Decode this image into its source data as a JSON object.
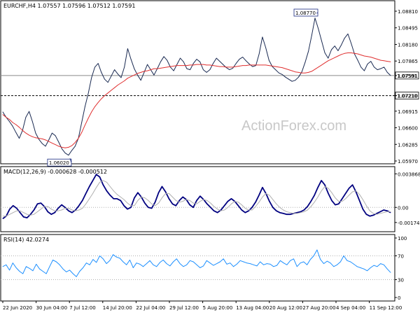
{
  "chart_data": [
    {
      "panel": "price",
      "type": "line",
      "title": "EURCHF,H4  1.07557 1.07596 1.07512 1.07591",
      "ylim": [
        1.0597,
        1.0881
      ],
      "y_ticks": [
        "1.08810",
        "1.08495",
        "1.08180",
        "1.07865",
        "1.07591",
        "1.07210",
        "1.06915",
        "1.06600",
        "1.06285",
        "1.05970"
      ],
      "series": [
        {
          "name": "",
          "color": "#1a2a52",
          "values": [
            1.069,
            1.068,
            1.0672,
            1.0663,
            1.0651,
            1.064,
            1.0655,
            1.068,
            1.0691,
            1.0672,
            1.065,
            1.0638,
            1.063,
            1.0625,
            1.0637,
            1.065,
            1.0645,
            1.0633,
            1.062,
            1.0612,
            1.0608,
            1.0617,
            1.0625,
            1.064,
            1.067,
            1.07,
            1.0725,
            1.0755,
            1.0775,
            1.0782,
            1.0765,
            1.0752,
            1.0746,
            1.0758,
            1.077,
            1.0762,
            1.0755,
            1.0775,
            1.081,
            1.079,
            1.0772,
            1.076,
            1.075,
            1.0765,
            1.078,
            1.077,
            1.076,
            1.0772,
            1.0785,
            1.0795,
            1.0788,
            1.0775,
            1.0768,
            1.078,
            1.0792,
            1.0785,
            1.0772,
            1.077,
            1.0782,
            1.079,
            1.0785,
            1.077,
            1.0765,
            1.077,
            1.0782,
            1.0792,
            1.0786,
            1.078,
            1.0774,
            1.077,
            1.0773,
            1.0782,
            1.079,
            1.0794,
            1.0787,
            1.0781,
            1.0776,
            1.0778,
            1.08,
            1.0832,
            1.0812,
            1.0788,
            1.0776,
            1.077,
            1.0764,
            1.0761,
            1.0756,
            1.0752,
            1.0748,
            1.075,
            1.0756,
            1.0766,
            1.0784,
            1.0805,
            1.0835,
            1.0868,
            1.0848,
            1.0825,
            1.0802,
            1.0792,
            1.0808,
            1.0815,
            1.0806,
            1.0817,
            1.083,
            1.0838,
            1.082,
            1.08,
            1.0788,
            1.0775,
            1.0768,
            1.0781,
            1.0786,
            1.0775,
            1.077,
            1.0772,
            1.0775,
            1.0765,
            1.0759
          ]
        },
        {
          "name": "",
          "color": "#e03030",
          "values": [
            1.0685,
            1.068,
            1.0676,
            1.067,
            1.0666,
            1.0661,
            1.0655,
            1.065,
            1.0646,
            1.0643,
            1.0641,
            1.064,
            1.0639,
            1.0637,
            1.0634,
            1.0631,
            1.0628,
            1.0625,
            1.0623,
            1.0622,
            1.0623,
            1.0626,
            1.0632,
            1.064,
            1.0651,
            1.0665,
            1.0678,
            1.069,
            1.07,
            1.0708,
            1.0715,
            1.0721,
            1.0726,
            1.0731,
            1.0736,
            1.0741,
            1.0745,
            1.0749,
            1.0754,
            1.0757,
            1.076,
            1.0763,
            1.0765,
            1.0767,
            1.0768,
            1.077,
            1.0772,
            1.0772,
            1.0773,
            1.0774,
            1.0775,
            1.0776,
            1.0777,
            1.0778,
            1.0778,
            1.0778,
            1.0778,
            1.0779,
            1.0779,
            1.078,
            1.078,
            1.078,
            1.0779,
            1.0779,
            1.0778,
            1.0777,
            1.0776,
            1.0776,
            1.0775,
            1.0775,
            1.0775,
            1.0776,
            1.0777,
            1.0778,
            1.0778,
            1.0779,
            1.0779,
            1.0779,
            1.0779,
            1.0779,
            1.0779,
            1.0778,
            1.0777,
            1.0776,
            1.0775,
            1.0774,
            1.0772,
            1.077,
            1.0768,
            1.0766,
            1.0765,
            1.0764,
            1.0764,
            1.0765,
            1.0767,
            1.0771,
            1.0775,
            1.0779,
            1.0783,
            1.0787,
            1.079,
            1.0793,
            1.0796,
            1.0799,
            1.0801,
            1.0802,
            1.0802,
            1.0801,
            1.08,
            1.0798,
            1.0796,
            1.0795,
            1.0794,
            1.0792,
            1.079,
            1.0788,
            1.0787,
            1.0786,
            1.0785
          ]
        }
      ],
      "hlines": [
        {
          "value": 1.07591,
          "label": "1.07591",
          "style": "solid",
          "color": "#8a8a8a"
        },
        {
          "value": 1.0721,
          "label": "1.07210",
          "style": "dashed",
          "color": "#000000"
        }
      ],
      "annotations": [
        {
          "text": "1.08770",
          "x_index": 95,
          "value": 1.0877
        },
        {
          "text": "1.06020",
          "x_index": 20,
          "value": 1.0602
        }
      ]
    },
    {
      "panel": "macd",
      "type": "line",
      "title": "MACD(12,26,9) -0.000628 -0.000512",
      "ylim": [
        -0.0024,
        0.0043
      ],
      "y_ticks": [
        "0.003868",
        "0.00",
        "-0.001742"
      ],
      "series": [
        {
          "name": "",
          "color": "#000080",
          "values": [
            -0.0013,
            -0.001,
            -0.0002,
            0.0002,
            -0.0001,
            -0.0006,
            -0.0011,
            -0.0012,
            -0.0008,
            -0.0003,
            0.0004,
            0.0005,
            0.0001,
            -0.0005,
            -0.0008,
            -0.0006,
            -0.0001,
            0.0003,
            0.0,
            -0.0004,
            -0.0006,
            -0.0003,
            0.0002,
            0.0008,
            0.0016,
            0.0024,
            0.0031,
            0.0038,
            0.0035,
            0.0026,
            0.0019,
            0.0014,
            0.001,
            0.001,
            0.0008,
            0.0002,
            -0.0002,
            0.0,
            0.0011,
            0.0017,
            0.0012,
            0.0005,
            0.0,
            -0.0001,
            0.0006,
            0.0017,
            0.0024,
            0.0018,
            0.001,
            0.0004,
            0.0002,
            0.0008,
            0.0012,
            0.0009,
            0.0003,
            0.0,
            0.0008,
            0.0013,
            0.0009,
            0.0004,
            0.0,
            -0.0004,
            -0.0006,
            -0.0003,
            0.0002,
            0.0007,
            0.001,
            0.0007,
            0.0002,
            -0.0003,
            -0.0006,
            -0.0004,
            0.0,
            0.0006,
            0.0014,
            0.0023,
            0.0016,
            0.0007,
            0.0,
            -0.0004,
            -0.0006,
            -0.0007,
            -0.0008,
            -0.0008,
            -0.0007,
            -0.0006,
            -0.0005,
            -0.0003,
            0.0001,
            0.0007,
            0.0014,
            0.0023,
            0.0031,
            0.0026,
            0.0016,
            0.0008,
            0.0003,
            0.0004,
            0.001,
            0.0016,
            0.0022,
            0.0026,
            0.0018,
            0.0008,
            -0.0002,
            -0.0008,
            -0.001,
            -0.0009,
            -0.0007,
            -0.0005,
            -0.0003,
            -0.0004,
            -0.0006
          ]
        },
        {
          "name": "",
          "color": "#b0b0b0",
          "values": [
            -0.001,
            -0.001,
            -0.0008,
            -0.0006,
            -0.0004,
            -0.0004,
            -0.0006,
            -0.0008,
            -0.0009,
            -0.0008,
            -0.0005,
            -0.0002,
            0.0001,
            0.0001,
            -0.0002,
            -0.0004,
            -0.0004,
            -0.0003,
            -0.0001,
            -0.0001,
            -0.0003,
            -0.0004,
            -0.0003,
            -0.0001,
            0.0004,
            0.001,
            0.0016,
            0.0023,
            0.0029,
            0.0031,
            0.0029,
            0.0024,
            0.0019,
            0.0015,
            0.0012,
            0.0009,
            0.0005,
            0.0002,
            0.0002,
            0.0008,
            0.0012,
            0.0011,
            0.0008,
            0.0004,
            0.0002,
            0.0005,
            0.0011,
            0.0016,
            0.0016,
            0.0012,
            0.0008,
            0.0006,
            0.0007,
            0.0009,
            0.0008,
            0.0005,
            0.0004,
            0.0007,
            0.0009,
            0.0008,
            0.0005,
            0.0001,
            -0.0002,
            -0.0004,
            -0.0003,
            0.0,
            0.0004,
            0.0007,
            0.0006,
            0.0003,
            -0.0001,
            -0.0003,
            -0.0003,
            0.0001,
            0.0006,
            0.0012,
            0.0016,
            0.0014,
            0.0009,
            0.0004,
            0.0,
            -0.0003,
            -0.0005,
            -0.0006,
            -0.0007,
            -0.0007,
            -0.0006,
            -0.0005,
            -0.0003,
            0.0001,
            0.0006,
            0.0012,
            0.0019,
            0.0024,
            0.0022,
            0.0017,
            0.0011,
            0.0007,
            0.0007,
            0.001,
            0.0014,
            0.0018,
            0.0019,
            0.0015,
            0.0009,
            0.0002,
            -0.0004,
            -0.0007,
            -0.0008,
            -0.0007,
            -0.0006,
            -0.0005,
            -0.0005
          ]
        }
      ],
      "hlines": [
        {
          "value": 0,
          "style": "dotted",
          "color": "#b0b0b0"
        }
      ]
    },
    {
      "panel": "rsi",
      "type": "line",
      "title": "RSI(14) 42.0274",
      "ylim": [
        0,
        100
      ],
      "y_ticks": [
        "100",
        "70",
        "30",
        "0"
      ],
      "series": [
        {
          "name": "",
          "color": "#1e90ff",
          "values": [
            52,
            55,
            46,
            58,
            50,
            44,
            40,
            52,
            49,
            45,
            56,
            48,
            44,
            40,
            52,
            63,
            60,
            55,
            48,
            43,
            46,
            40,
            35,
            44,
            50,
            58,
            55,
            64,
            59,
            70,
            65,
            57,
            62,
            72,
            68,
            66,
            60,
            55,
            63,
            50,
            58,
            56,
            52,
            57,
            62,
            55,
            52,
            59,
            63,
            57,
            53,
            60,
            65,
            57,
            52,
            55,
            62,
            60,
            55,
            50,
            53,
            62,
            58,
            54,
            57,
            60,
            65,
            56,
            58,
            52,
            56,
            62,
            60,
            58,
            57,
            55,
            53,
            60,
            55,
            57,
            56,
            52,
            54,
            62,
            58,
            55,
            62,
            65,
            52,
            58,
            60,
            55,
            64,
            70,
            80,
            64,
            57,
            61,
            58,
            52,
            55,
            60,
            70,
            62,
            60,
            56,
            52,
            50,
            48,
            45,
            50,
            54,
            52,
            57,
            55,
            48,
            42
          ]
        }
      ],
      "hlines": [
        {
          "value": 70,
          "style": "dotted",
          "color": "#b0b0b0"
        },
        {
          "value": 30,
          "style": "dotted",
          "color": "#b0b0b0"
        }
      ]
    }
  ],
  "x_axis_labels": [
    "22 Jun 2020",
    "30 Jun 04:00",
    "7 Jul 12:00",
    "14 Jul 20:00",
    "22 Jul 04:00",
    "29 Jul 12:00",
    "5 Aug 20:00",
    "13 Aug 04:00",
    "20 Aug 12:00",
    "27 Aug 20:00",
    "4 Sep 04:00",
    "11 Sep 12:00"
  ],
  "watermark": "ActionForex.com"
}
